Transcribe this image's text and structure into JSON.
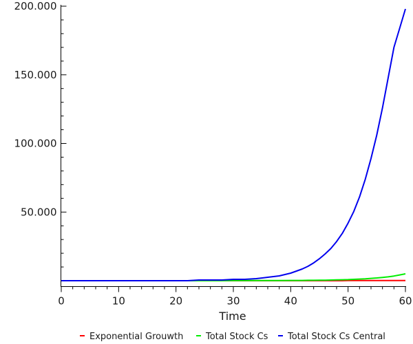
{
  "chart_data": {
    "type": "line",
    "title": "",
    "xlabel": "Time",
    "ylabel": "",
    "xlim": [
      0,
      60
    ],
    "ylim": [
      0,
      200000
    ],
    "grid": false,
    "legend_position": "bottom",
    "x_ticks": [
      0,
      10,
      20,
      30,
      40,
      50,
      60
    ],
    "x_tick_labels": [
      "0",
      "10",
      "20",
      "30",
      "40",
      "50",
      "60"
    ],
    "y_ticks": [
      50000,
      100000,
      150000,
      200000
    ],
    "y_tick_labels": [
      "50.000",
      "100.000",
      "150.000",
      "200.000"
    ],
    "x": [
      0,
      2,
      4,
      6,
      8,
      10,
      12,
      14,
      16,
      18,
      20,
      22,
      24,
      26,
      28,
      30,
      32,
      34,
      36,
      38,
      40,
      41,
      42,
      43,
      44,
      45,
      46,
      47,
      48,
      49,
      50,
      51,
      52,
      53,
      54,
      55,
      56,
      57,
      58,
      59,
      60
    ],
    "series": [
      {
        "name": "Exponential Grouwth",
        "color": "#ff0000",
        "values": [
          0,
          0,
          0,
          0,
          0,
          0,
          0,
          0,
          0,
          0,
          0,
          0,
          0,
          0,
          0,
          0,
          0,
          0,
          0,
          0,
          0,
          0,
          0,
          0,
          0,
          0,
          0,
          0,
          0,
          0,
          100,
          100,
          100,
          100,
          100,
          100,
          100,
          100,
          100,
          100,
          100
        ]
      },
      {
        "name": "Total Stock Cs",
        "color": "#00ee00",
        "values": [
          0,
          0,
          0,
          0,
          0,
          0,
          0,
          0,
          0,
          0,
          0,
          0,
          0,
          0,
          0,
          100,
          100,
          100,
          100,
          100,
          200,
          200,
          200,
          300,
          300,
          400,
          400,
          500,
          600,
          700,
          800,
          1000,
          1200,
          1400,
          1700,
          2000,
          2400,
          2800,
          3400,
          4200,
          5000
        ]
      },
      {
        "name": "Total Stock Cs Central",
        "color": "#0000ee",
        "values": [
          0,
          0,
          0,
          0,
          0,
          0,
          0,
          0,
          0,
          0,
          0,
          0,
          500,
          500,
          500,
          1000,
          1000,
          1500,
          2500,
          3500,
          5500,
          7000,
          8500,
          10500,
          13000,
          16000,
          19500,
          23500,
          28500,
          34500,
          42000,
          50500,
          61000,
          74000,
          89000,
          106000,
          126000,
          148000,
          170000,
          184000,
          198000
        ]
      }
    ]
  }
}
